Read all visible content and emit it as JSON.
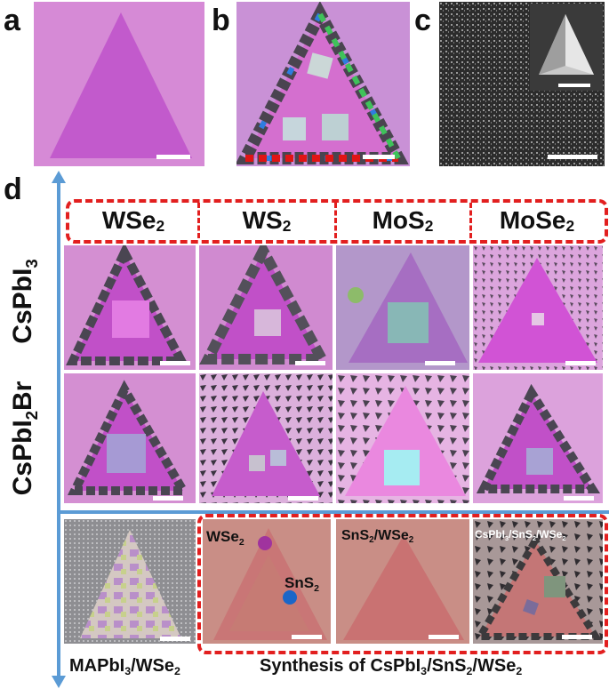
{
  "panels": {
    "a": "a",
    "b": "b",
    "c": "c",
    "d": "d"
  },
  "columns": [
    "WSe",
    "WS",
    "MoS",
    "MoSe"
  ],
  "col_sub": [
    "2",
    "2",
    "2",
    "2"
  ],
  "rows": {
    "row1_main": "CsPbI",
    "row1_sub": "3",
    "row2_main": "CsPbI",
    "row2_sub": "2",
    "row2_tail": "Br"
  },
  "bottom": {
    "wse2_main": "WSe",
    "wse2_sub": "2",
    "sns2_main": "SnS",
    "sns2_sub": "2",
    "snswse_a": "SnS",
    "snswse_b": "2",
    "snswse_c": "/WSe",
    "snswse_d": "2",
    "triple_a": "CsPbI",
    "triple_b": "3",
    "triple_c": "/SnS",
    "triple_d": "2",
    "triple_e": "/WSe",
    "triple_f": "2",
    "cap_left_a": "MAPbI",
    "cap_left_b": "3",
    "cap_left_c": "/WSe",
    "cap_left_d": "2",
    "cap_right_a": "Synthesis of CsPbI",
    "cap_right_b": "3",
    "cap_right_c": "/SnS",
    "cap_right_d": "2",
    "cap_right_e": "/WSe",
    "cap_right_f": "2"
  },
  "colors": {
    "substrate_pink": "#d68ad6",
    "flake_magenta": "#bf4fc9",
    "dashed_red": "#e21f1f",
    "axis_blue": "#5b9bd5",
    "bottom_substrate": "#c88c88",
    "bottom_flake": "#c97272"
  }
}
